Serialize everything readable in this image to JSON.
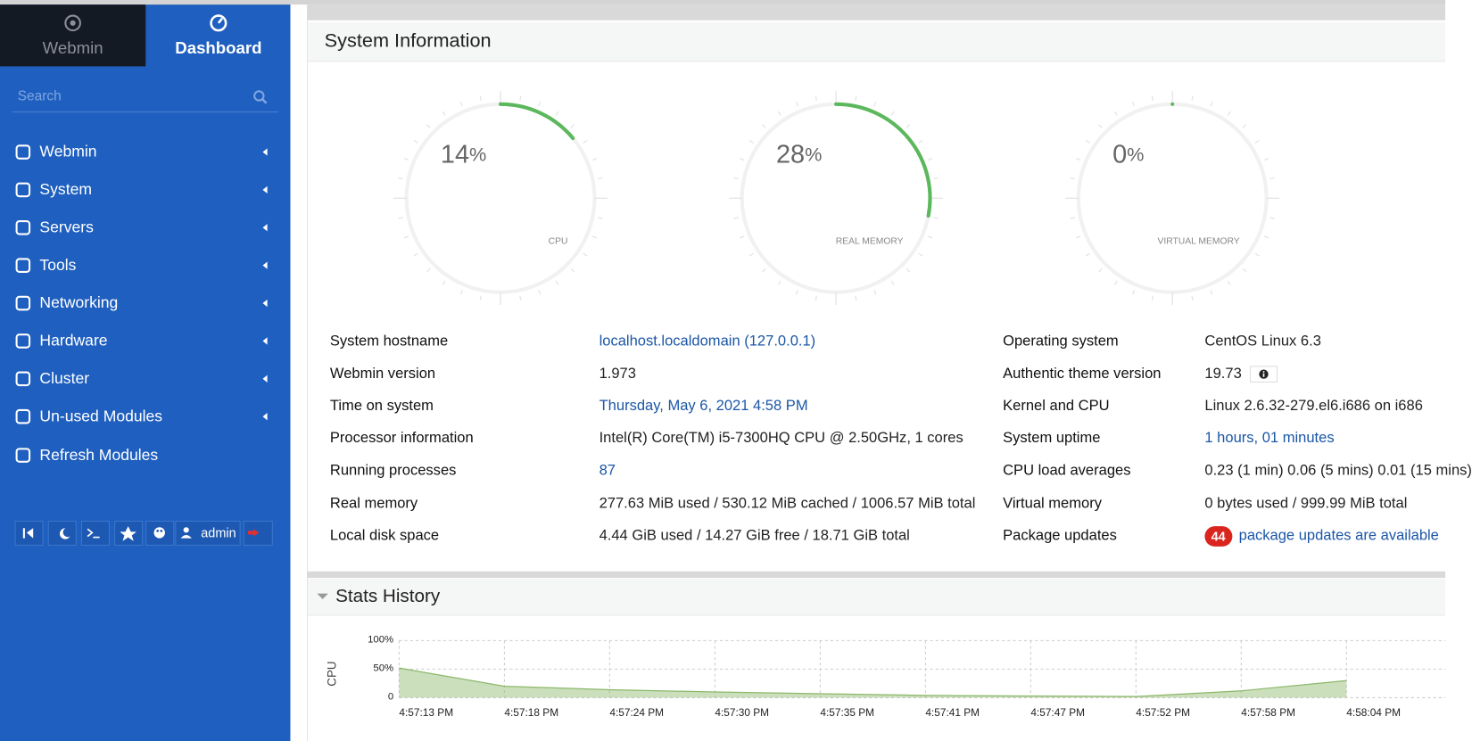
{
  "sidebar": {
    "tabs": [
      "Webmin",
      "Dashboard"
    ],
    "search_placeholder": "Search",
    "menu": [
      "Webmin",
      "System",
      "Servers",
      "Tools",
      "Networking",
      "Hardware",
      "Cluster",
      "Un-used Modules",
      "Refresh Modules"
    ],
    "user": "admin"
  },
  "system_information": {
    "title": "System Information",
    "unit": "%",
    "gauges": [
      {
        "value": 14,
        "label": "CPU"
      },
      {
        "value": 28,
        "label": "REAL MEMORY"
      },
      {
        "value": 0,
        "label": "VIRTUAL MEMORY"
      }
    ],
    "left": [
      {
        "label": "System hostname",
        "value": "localhost.localdomain (127.0.0.1)",
        "link": true
      },
      {
        "label": "Webmin version",
        "value": "1.973"
      },
      {
        "label": "Time on system",
        "value": "Thursday, May 6, 2021 4:58 PM",
        "link": true
      },
      {
        "label": "Processor information",
        "value": "Intel(R) Core(TM) i5-7300HQ CPU @ 2.50GHz, 1 cores"
      },
      {
        "label": "Running processes",
        "value": "87",
        "link": true
      },
      {
        "label": "Real memory",
        "value": "277.63 MiB used / 530.12 MiB cached / 1006.57 MiB total"
      },
      {
        "label": "Local disk space",
        "value": "4.44 GiB used / 14.27 GiB free / 18.71 GiB total"
      }
    ],
    "right": [
      {
        "label": "Operating system",
        "value": "CentOS Linux 6.3"
      },
      {
        "label": "Authentic theme version",
        "value": "19.73",
        "info": true
      },
      {
        "label": "Kernel and CPU",
        "value": "Linux 2.6.32-279.el6.i686 on i686"
      },
      {
        "label": "System uptime",
        "value": "1 hours, 01 minutes",
        "link": true
      },
      {
        "label": "CPU load averages",
        "value": "0.23 (1 min) 0.06 (5 mins) 0.01 (15 mins)"
      },
      {
        "label": "Virtual memory",
        "value": "0 bytes used / 999.99 MiB total"
      },
      {
        "label": "Package updates",
        "badge": "44",
        "value": "package updates are available",
        "link": true
      }
    ]
  },
  "stats_history": {
    "title": "Stats History",
    "chart_data": {
      "type": "area",
      "y_label": "CPU",
      "categories": [
        "4:57:13 PM",
        "4:57:18 PM",
        "4:57:24 PM",
        "4:57:30 PM",
        "4:57:35 PM",
        "4:57:41 PM",
        "4:57:47 PM",
        "4:57:52 PM",
        "4:57:58 PM",
        "4:58:04 PM"
      ],
      "series": [
        {
          "name": "CPU",
          "color": "#8cb86a",
          "values": [
            52,
            20,
            14,
            10,
            7,
            4,
            3,
            2,
            12,
            30
          ]
        }
      ],
      "ylim": [
        0,
        100
      ],
      "yticks": [
        0,
        {
          "value": 50,
          "label": "50%"
        },
        {
          "value": 100,
          "label": "100%"
        }
      ],
      "grid": true
    }
  }
}
